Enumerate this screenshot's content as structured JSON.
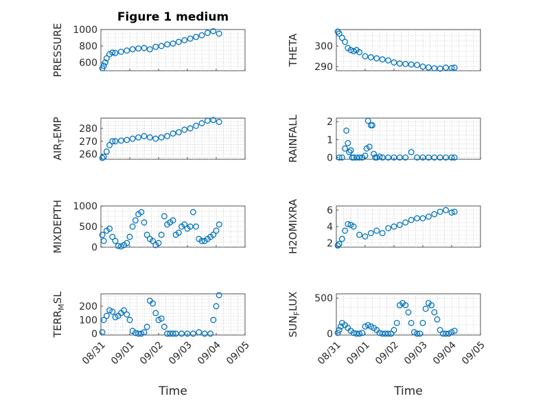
{
  "figure": {
    "title": "Figure 1 medium",
    "marker_color": "#0072bd",
    "x_ticks": [
      "08/31",
      "09/01",
      "09/02",
      "09/03",
      "09/04",
      "09/05"
    ],
    "x_label": "Time"
  },
  "chart_data": [
    {
      "type": "scatter",
      "ylabel": "PRESSURE",
      "ylim": [
        500,
        1000
      ],
      "yticks": [
        600,
        800,
        1000
      ],
      "x": [
        0.05,
        0.1,
        0.15,
        0.2,
        0.3,
        0.4,
        0.5,
        0.7,
        0.9,
        1.1,
        1.3,
        1.5,
        1.7,
        1.9,
        2.1,
        2.3,
        2.5,
        2.7,
        2.9,
        3.1,
        3.3,
        3.5,
        3.7,
        3.9,
        4.1
      ],
      "y": [
        530,
        560,
        600,
        650,
        700,
        720,
        715,
        730,
        745,
        760,
        770,
        775,
        760,
        790,
        800,
        820,
        830,
        850,
        870,
        890,
        910,
        930,
        960,
        980,
        950
      ]
    },
    {
      "type": "scatter",
      "ylabel": "THETA",
      "ylim": [
        288,
        308
      ],
      "yticks": [
        290,
        300
      ],
      "x": [
        0.05,
        0.1,
        0.2,
        0.3,
        0.4,
        0.5,
        0.6,
        0.7,
        0.8,
        1.0,
        1.2,
        1.4,
        1.6,
        1.8,
        2.0,
        2.2,
        2.4,
        2.6,
        2.8,
        3.0,
        3.2,
        3.4,
        3.6,
        3.8,
        4.0,
        4.1
      ],
      "y": [
        307,
        306,
        304,
        302,
        299,
        298,
        297.5,
        298,
        297,
        295,
        294.5,
        294,
        293.5,
        293,
        292,
        291.5,
        291.3,
        291,
        290.8,
        290,
        289.6,
        289.2,
        289,
        289.5,
        289.3,
        289.5
      ]
    },
    {
      "type": "scatter",
      "ylabel": "AIR_TEMP",
      "ylim": [
        256,
        288
      ],
      "yticks": [
        260,
        270,
        280
      ],
      "x": [
        0.05,
        0.1,
        0.2,
        0.3,
        0.4,
        0.5,
        0.7,
        0.9,
        1.1,
        1.3,
        1.5,
        1.7,
        1.9,
        2.1,
        2.3,
        2.5,
        2.7,
        2.9,
        3.1,
        3.3,
        3.5,
        3.7,
        3.9,
        4.1
      ],
      "y": [
        257,
        258,
        262,
        267,
        270,
        270,
        270.5,
        271,
        272,
        273,
        274,
        273,
        272,
        273,
        274,
        276,
        277,
        279,
        280,
        282,
        284,
        286,
        286.5,
        285
      ]
    },
    {
      "type": "scatter",
      "ylabel": "RAINFALL",
      "ylim": [
        -0.1,
        2.2
      ],
      "yticks": [
        0,
        1,
        2
      ],
      "x": [
        0.1,
        0.2,
        0.3,
        0.35,
        0.4,
        0.45,
        0.5,
        0.55,
        0.6,
        0.7,
        0.8,
        0.9,
        1.0,
        1.05,
        1.1,
        1.15,
        1.2,
        1.25,
        1.3,
        1.35,
        1.4,
        1.5,
        1.6,
        1.8,
        2.0,
        2.2,
        2.4,
        2.6,
        2.8,
        3.0,
        3.2,
        3.4,
        3.6,
        3.8,
        4.0,
        4.1
      ],
      "y": [
        0,
        0,
        0.5,
        1.5,
        0.8,
        0.3,
        0.4,
        0,
        0,
        0,
        0,
        0,
        0.1,
        0.5,
        2.05,
        0.6,
        1.8,
        1.8,
        0.2,
        0,
        0,
        0.05,
        0,
        0,
        0,
        0,
        0,
        0.3,
        0,
        0,
        0,
        0,
        0,
        0,
        0,
        0
      ]
    },
    {
      "type": "scatter",
      "ylabel": "MIXDEPTH",
      "ylim": [
        0,
        1000
      ],
      "yticks": [
        0,
        500,
        1000
      ],
      "x": [
        0.05,
        0.1,
        0.2,
        0.3,
        0.4,
        0.5,
        0.6,
        0.7,
        0.8,
        0.9,
        1.0,
        1.1,
        1.2,
        1.3,
        1.4,
        1.5,
        1.6,
        1.7,
        1.8,
        1.9,
        2.0,
        2.1,
        2.2,
        2.3,
        2.4,
        2.5,
        2.6,
        2.7,
        2.8,
        2.9,
        3.0,
        3.1,
        3.2,
        3.3,
        3.4,
        3.5,
        3.6,
        3.7,
        3.8,
        3.9,
        4.0,
        4.1
      ],
      "y": [
        300,
        150,
        400,
        450,
        250,
        150,
        30,
        20,
        50,
        100,
        250,
        500,
        650,
        800,
        850,
        600,
        300,
        200,
        150,
        50,
        100,
        300,
        750,
        550,
        600,
        650,
        300,
        350,
        500,
        550,
        450,
        500,
        850,
        500,
        200,
        150,
        150,
        200,
        250,
        300,
        400,
        550
      ]
    },
    {
      "type": "scatter",
      "ylabel": "H2OMIXRA",
      "ylim": [
        1.5,
        6.5
      ],
      "yticks": [
        2,
        4,
        6
      ],
      "x": [
        0.05,
        0.1,
        0.2,
        0.3,
        0.4,
        0.5,
        0.6,
        0.8,
        1.0,
        1.2,
        1.4,
        1.6,
        1.8,
        2.0,
        2.2,
        2.4,
        2.6,
        2.8,
        3.0,
        3.2,
        3.4,
        3.6,
        3.8,
        4.0,
        4.1
      ],
      "y": [
        1.7,
        1.9,
        2.5,
        3.5,
        4.3,
        4.2,
        4.0,
        3.0,
        2.8,
        3.2,
        3.5,
        3.2,
        3.8,
        4.0,
        4.2,
        4.5,
        4.8,
        5.0,
        5.0,
        5.2,
        5.5,
        5.8,
        6.0,
        5.7,
        5.8
      ]
    },
    {
      "type": "scatter",
      "ylabel": "TERR_MSL",
      "ylim": [
        -10,
        290
      ],
      "yticks": [
        0,
        100,
        200
      ],
      "x": [
        0.05,
        0.1,
        0.2,
        0.3,
        0.4,
        0.5,
        0.6,
        0.7,
        0.8,
        0.9,
        1.0,
        1.1,
        1.2,
        1.3,
        1.4,
        1.5,
        1.6,
        1.7,
        1.8,
        1.9,
        2.0,
        2.1,
        2.2,
        2.3,
        2.4,
        2.5,
        2.6,
        2.8,
        3.0,
        3.2,
        3.4,
        3.6,
        3.8,
        3.9,
        4.0,
        4.1
      ],
      "y": [
        10,
        100,
        130,
        170,
        160,
        120,
        130,
        150,
        170,
        140,
        100,
        20,
        5,
        0,
        0,
        10,
        50,
        240,
        220,
        150,
        100,
        110,
        50,
        0,
        0,
        0,
        0,
        0,
        0,
        0,
        10,
        0,
        0,
        100,
        200,
        280
      ]
    },
    {
      "type": "scatter",
      "ylabel": "SUN_FLUX",
      "ylim": [
        -20,
        560
      ],
      "yticks": [
        0,
        500
      ],
      "x": [
        0.05,
        0.1,
        0.15,
        0.2,
        0.3,
        0.4,
        0.5,
        0.6,
        0.7,
        0.8,
        0.9,
        1.0,
        1.1,
        1.2,
        1.3,
        1.4,
        1.5,
        1.6,
        1.7,
        1.8,
        1.9,
        2.0,
        2.1,
        2.2,
        2.3,
        2.4,
        2.5,
        2.6,
        2.7,
        2.8,
        2.9,
        3.0,
        3.1,
        3.2,
        3.3,
        3.4,
        3.5,
        3.6,
        3.7,
        3.8,
        3.9,
        4.0,
        4.1
      ],
      "y": [
        10,
        50,
        100,
        150,
        120,
        80,
        40,
        10,
        0,
        0,
        10,
        100,
        120,
        100,
        80,
        50,
        10,
        0,
        0,
        0,
        0,
        50,
        150,
        400,
        430,
        400,
        300,
        150,
        20,
        0,
        0,
        150,
        350,
        430,
        400,
        300,
        200,
        50,
        0,
        0,
        0,
        20,
        40
      ]
    }
  ]
}
